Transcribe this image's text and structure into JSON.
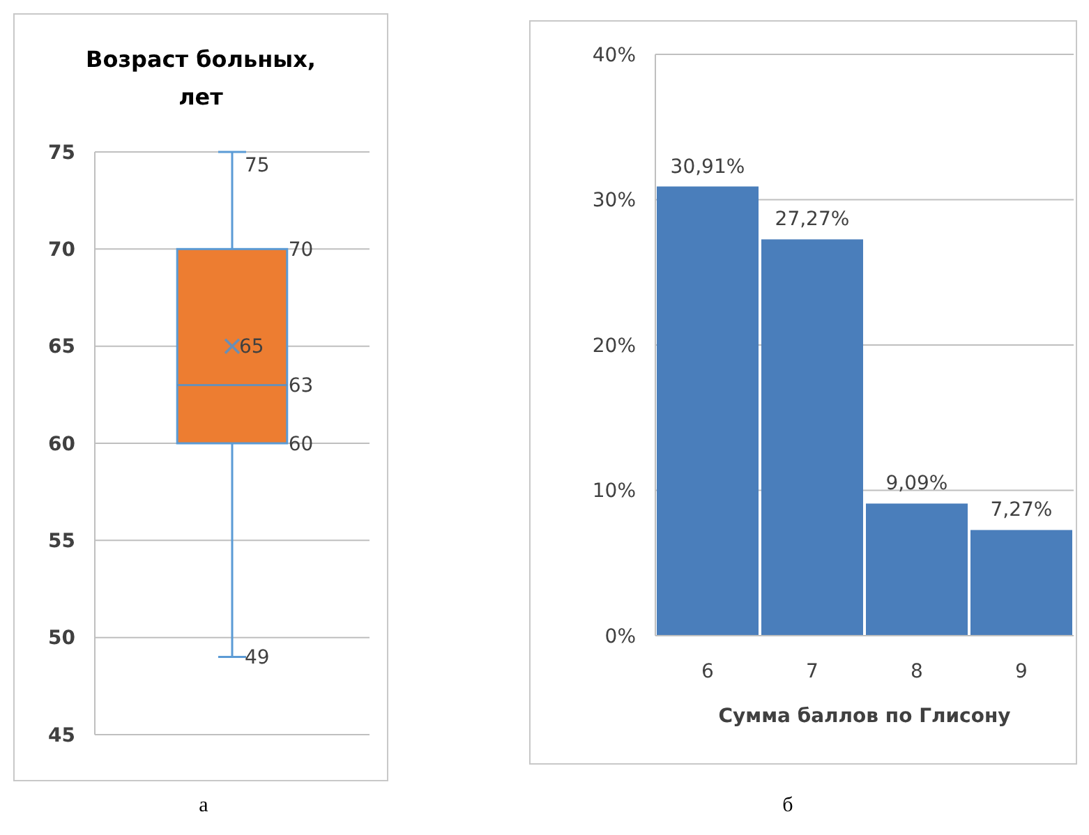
{
  "chart_data": [
    {
      "type": "box",
      "title": "Возраст больных, лет",
      "categories": [
        null
      ],
      "tick_labels": "y",
      "ylim": [
        45,
        75
      ],
      "yticks": [
        45,
        50,
        55,
        60,
        65,
        70,
        75
      ],
      "grid": "y",
      "annotations": [
        "а",
        "75",
        "70",
        "65",
        "63",
        "60",
        "49"
      ],
      "series": [
        {
          "color": "#ed7d31",
          "boxes": [
            {
              "low": 49,
              "q1": 60,
              "median": 63,
              "q3": 70,
              "high": 75,
              "mean": 65
            }
          ]
        }
      ]
    },
    {
      "type": "bar",
      "xlabel": "Сумма баллов по Глисону",
      "categories": [
        "6",
        "7",
        "8",
        "9"
      ],
      "ylim": [
        0,
        40
      ],
      "yticks": [
        {
          "value": 0,
          "label": "0%"
        },
        {
          "value": 10,
          "label": "10%"
        },
        {
          "value": 20,
          "label": "20%"
        },
        {
          "value": 30,
          "label": "30%"
        },
        {
          "value": 40,
          "label": "40%"
        }
      ],
      "grid": "y",
      "annotations": [
        "б"
      ],
      "series": [
        {
          "color": "#4a7ebb",
          "values": [
            30.91,
            27.27,
            9.09,
            7.27
          ],
          "value_labels": [
            "30,91%",
            "27,27%",
            "9,09%",
            "7,27%"
          ]
        }
      ]
    }
  ]
}
